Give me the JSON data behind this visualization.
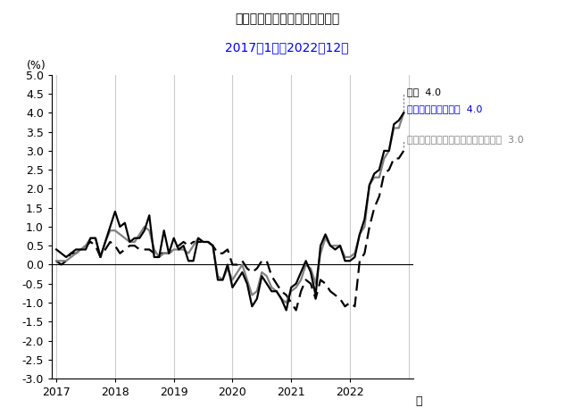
{
  "title_main": "消費者物価指数（前年同月比）",
  "title_sub": "2017年1月～2022年12月",
  "xlabel_right": "年",
  "ylabel": "(%)",
  "ylim": [
    -3.0,
    5.0
  ],
  "yticks": [
    -3.0,
    -2.5,
    -2.0,
    -1.5,
    -1.0,
    -0.5,
    0.0,
    0.5,
    1.0,
    1.5,
    2.0,
    2.5,
    3.0,
    3.5,
    4.0,
    4.5,
    5.0
  ],
  "xticks": [
    2017,
    2018,
    2019,
    2020,
    2021,
    2022
  ],
  "xlim_left": 2016.92,
  "xlim_right": 2023.08,
  "series": {
    "sougo": {
      "label": "総合  4.0",
      "color": "#000000",
      "linestyle": "solid",
      "linewidth": 1.6,
      "values": [
        0.4,
        0.3,
        0.2,
        0.3,
        0.4,
        0.4,
        0.4,
        0.7,
        0.7,
        0.2,
        0.6,
        1.0,
        1.4,
        1.0,
        1.1,
        0.6,
        0.7,
        0.7,
        0.9,
        1.3,
        0.2,
        0.2,
        0.9,
        0.3,
        0.7,
        0.4,
        0.5,
        0.1,
        0.1,
        0.7,
        0.6,
        0.6,
        0.5,
        -0.4,
        -0.4,
        0.0,
        -0.6,
        -0.4,
        -0.2,
        -0.5,
        -1.1,
        -0.9,
        -0.3,
        -0.5,
        -0.7,
        -0.7,
        -0.9,
        -1.2,
        -0.6,
        -0.5,
        -0.2,
        0.1,
        -0.2,
        -0.8,
        0.5,
        0.8,
        0.5,
        0.4,
        0.5,
        0.1,
        0.1,
        0.2,
        0.8,
        1.2,
        2.1,
        2.4,
        2.5,
        3.0,
        3.0,
        3.7,
        3.8,
        4.0
      ]
    },
    "fresh_excluded": {
      "label": "生鮮食品を除く総合  4.0",
      "color": "#808080",
      "linestyle": "solid",
      "linewidth": 1.6,
      "values": [
        0.1,
        0.1,
        0.1,
        0.2,
        0.3,
        0.4,
        0.5,
        0.7,
        0.7,
        0.2,
        0.6,
        0.9,
        0.9,
        0.8,
        0.7,
        0.6,
        0.6,
        0.8,
        1.0,
        0.9,
        0.4,
        0.2,
        0.3,
        0.3,
        0.4,
        0.4,
        0.4,
        0.3,
        0.5,
        0.7,
        0.6,
        0.6,
        0.5,
        -0.3,
        -0.4,
        -0.1,
        -0.4,
        -0.2,
        -0.0,
        -0.4,
        -0.8,
        -0.7,
        -0.2,
        -0.3,
        -0.6,
        -0.7,
        -0.9,
        -1.0,
        -0.7,
        -0.6,
        -0.4,
        0.0,
        -0.1,
        -0.5,
        0.3,
        0.7,
        0.5,
        0.5,
        0.5,
        0.2,
        0.2,
        0.3,
        0.8,
        1.0,
        2.1,
        2.3,
        2.3,
        2.8,
        3.0,
        3.6,
        3.6,
        4.0
      ]
    },
    "energy_excluded": {
      "label": "生鮮食品及びエネルギーを除く総合  3.0",
      "color": "#000000",
      "linestyle": "dashed",
      "linewidth": 1.6,
      "values": [
        0.1,
        0.0,
        0.1,
        0.3,
        0.3,
        0.4,
        0.5,
        0.6,
        0.5,
        0.2,
        0.4,
        0.6,
        0.5,
        0.3,
        0.4,
        0.5,
        0.5,
        0.4,
        0.4,
        0.4,
        0.3,
        0.3,
        0.3,
        0.3,
        0.4,
        0.5,
        0.6,
        0.5,
        0.6,
        0.6,
        0.6,
        0.6,
        0.5,
        0.3,
        0.3,
        0.4,
        0.0,
        0.0,
        0.1,
        -0.1,
        -0.2,
        -0.1,
        0.1,
        0.1,
        -0.3,
        -0.5,
        -0.7,
        -0.8,
        -1.0,
        -1.2,
        -0.7,
        -0.4,
        -0.5,
        -0.9,
        -0.4,
        -0.5,
        -0.7,
        -0.8,
        -0.9,
        -1.1,
        -1.0,
        -1.1,
        0.1,
        0.3,
        1.0,
        1.5,
        1.8,
        2.4,
        2.5,
        2.8,
        2.8,
        3.0
      ]
    }
  },
  "n_months": 72,
  "start_year": 2017,
  "start_month": 1,
  "vgrid_years": [
    2017,
    2018,
    2019,
    2020,
    2021,
    2022,
    2023
  ],
  "title_main_color": "#000000",
  "title_sub_color": "#0000ff",
  "annotation_label1_color": "#000000",
  "annotation_label2_color": "#0000cc",
  "annotation_label3_color": "#808080"
}
